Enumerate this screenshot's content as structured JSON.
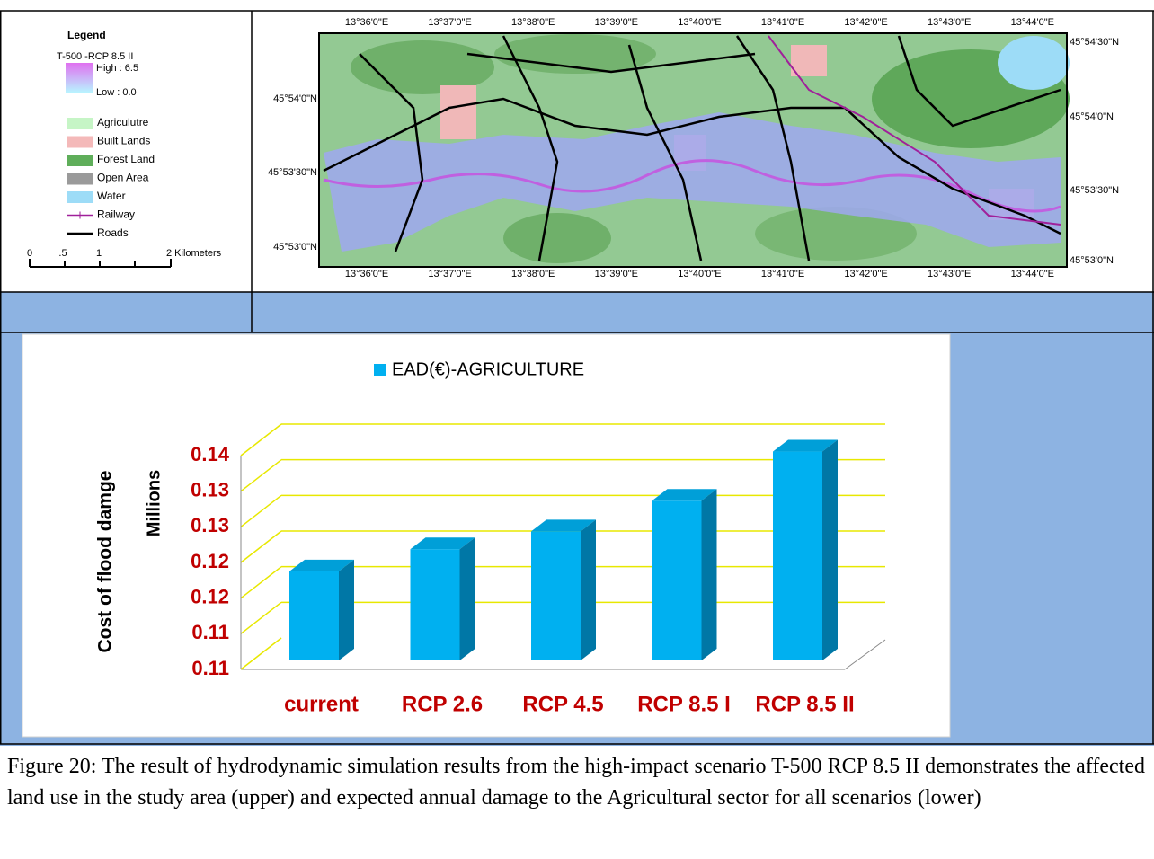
{
  "legend": {
    "title": "Legend",
    "layer": "T-500  -RCP 8.5 II",
    "high": "High : 6.5",
    "low": "Low : 0.0",
    "items": [
      {
        "label": "Agriculutre",
        "color": "#c6f5c6"
      },
      {
        "label": "Built Lands",
        "color": "#f4b9b9"
      },
      {
        "label": "Forest Land",
        "color": "#5fae5a"
      },
      {
        "label": "Open Area",
        "color": "#9a9a9a"
      },
      {
        "label": "Water",
        "color": "#9ddcf7"
      },
      {
        "label": "Railway",
        "color": "#a0209a"
      },
      {
        "label": "Roads",
        "color": "#000000"
      }
    ],
    "scale_labels": [
      "0",
      ".5",
      "1",
      "2 Kilometers"
    ]
  },
  "map": {
    "top_labels": [
      "13°36'0\"E",
      "13°37'0\"E",
      "13°38'0\"E",
      "13°39'0\"E",
      "13°40'0\"E",
      "13°41'0\"E",
      "13°42'0\"E",
      "13°43'0\"E",
      "13°44'0\"E"
    ],
    "bottom_labels": [
      "13°36'0\"E",
      "13°37'0\"E",
      "13°38'0\"E",
      "13°39'0\"E",
      "13°40'0\"E",
      "13°41'0\"E",
      "13°42'0\"E",
      "13°43'0\"E",
      "13°44'0\"E"
    ],
    "left_labels": [
      "45°54'0\"N",
      "45°53'30\"N",
      "45°53'0\"N"
    ],
    "right_labels": [
      "45°54'30\"N",
      "45°54'0\"N",
      "45°53'30\"N",
      "45°53'0\"N"
    ]
  },
  "chart_data": {
    "type": "bar",
    "y_label": "Cost of flood damge",
    "y_unit_label": "Millions",
    "categories": [
      "current",
      "RCP 2.6",
      "RCP 4.5",
      "RCP 8.5 I",
      "RCP 8.5 II"
    ],
    "series": [
      {
        "name": "EAD(€)-AGRICULTURE",
        "color": "#00b0f0",
        "values": [
          0.1175,
          0.1206,
          0.1231,
          0.1274,
          0.1343
        ]
      }
    ],
    "ylim": [
      0.105,
      0.135
    ],
    "yticks": [
      {
        "value": 0.105,
        "label": "0.11"
      },
      {
        "value": 0.11,
        "label": "0.11"
      },
      {
        "value": 0.115,
        "label": "0.12"
      },
      {
        "value": 0.12,
        "label": "0.12"
      },
      {
        "value": 0.125,
        "label": "0.13"
      },
      {
        "value": 0.13,
        "label": "0.13"
      },
      {
        "value": 0.135,
        "label": "0.14"
      }
    ],
    "grid": true
  },
  "caption": "Figure 20: The result of hydrodynamic simulation results from the high-impact scenario T-500 RCP 8.5 II demonstrates the affected land use in the study area  (upper) and expected annual damage to the Agricultural sector for all scenarios (lower)"
}
